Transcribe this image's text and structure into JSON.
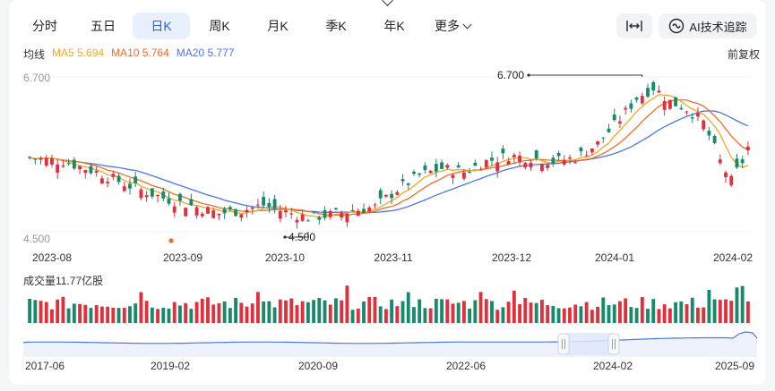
{
  "tabs": [
    {
      "label": "分时"
    },
    {
      "label": "五日"
    },
    {
      "label": "日K",
      "active": true
    },
    {
      "label": "周K"
    },
    {
      "label": "月K"
    },
    {
      "label": "季K"
    },
    {
      "label": "年K"
    },
    {
      "label": "更多"
    }
  ],
  "toolbar": {
    "range_icon": "expand-horizontal-icon",
    "ai_label": "AI技术追踪",
    "ai_icon": "ai-swirl-icon"
  },
  "ma": {
    "title": "均线",
    "ma5": "MA5 5.694",
    "ma10": "MA10 5.764",
    "ma20": "MA20 5.777"
  },
  "adjust_label": "前复权",
  "colors": {
    "up": "#e0303c",
    "down": "#168a6a",
    "ma5": "#f5a623",
    "ma10": "#ee6d2c",
    "ma20": "#4a76e8",
    "accent": "#1f62e0"
  },
  "chart_data": {
    "type": "candlestick",
    "y_labels": [
      "6.700",
      "4.500"
    ],
    "ylim": [
      4.5,
      6.7
    ],
    "x_labels": [
      "2023-08",
      "2023-09",
      "2023-10",
      "2023-11",
      "2023-12",
      "2024-01",
      "2024-02"
    ],
    "annotations": {
      "max": "6.700",
      "min": "4.500"
    },
    "last_values": {
      "ma5": 5.694,
      "ma10": 5.764,
      "ma20": 5.777
    },
    "volume_label": "成交量11.77亿股",
    "overview_x_labels": [
      "2017-06",
      "2019-02",
      "2020-09",
      "2022-06",
      "2024-02",
      "2025-09"
    ]
  }
}
